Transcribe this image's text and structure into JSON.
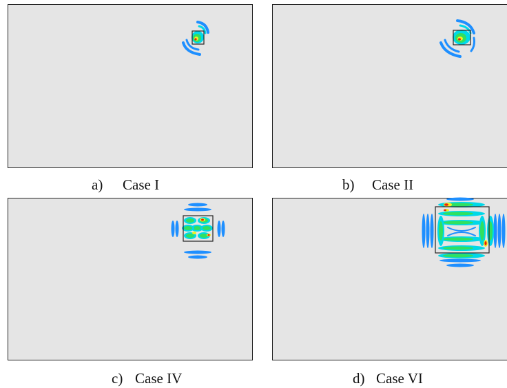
{
  "panels": [
    {
      "label": "a)",
      "caption": "Case I"
    },
    {
      "label": "b)",
      "caption": "Case II"
    },
    {
      "label": "c)",
      "caption": "Case IV"
    },
    {
      "label": "d)",
      "caption": "Case VI"
    }
  ]
}
